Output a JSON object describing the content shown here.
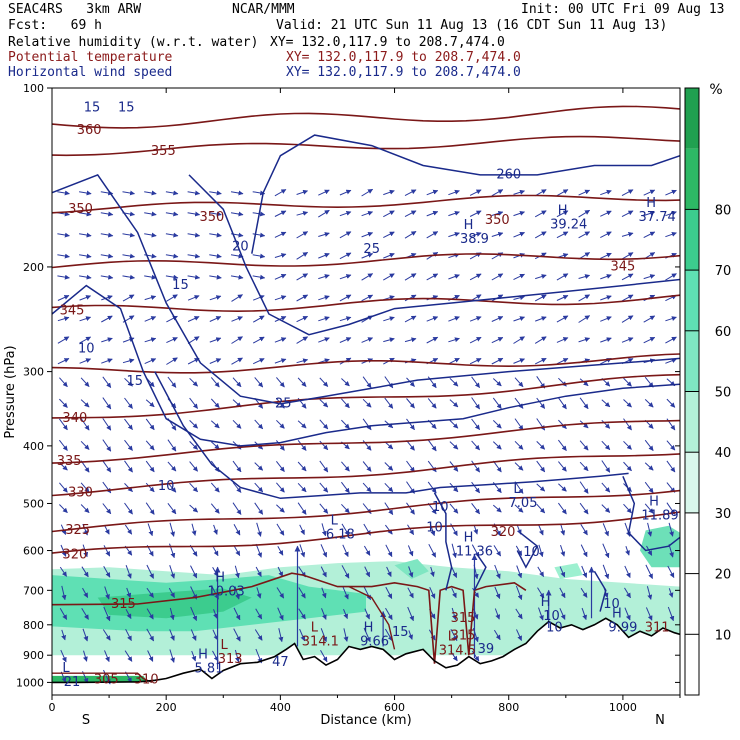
{
  "header": {
    "model": "SEAC4RS   3km ARW",
    "center": "NCAR/MMM",
    "init": "Init: 00 UTC Fri 09 Aug 13",
    "fcst": "Fcst:   69 h",
    "valid": "Valid: 21 UTC Sun 11 Aug 13 (16 CDT Sun 11 Aug 13)"
  },
  "fields": [
    {
      "name": "Relative humidity (w.r.t. water)",
      "xy": "XY= 132.0,117.9 to 208.7,474.0",
      "color": "#000000"
    },
    {
      "name": "Potential temperature",
      "xy": "XY= 132.0,117.9 to 208.7,474.0",
      "color": "#8b1a1a"
    },
    {
      "name": "Horizontal wind speed",
      "xy": "XY= 132.0,117.9 to 208.7,474.0",
      "color": "#1a2a8b"
    }
  ],
  "chart_data": {
    "type": "cross-section",
    "ylabel": "Pressure (hPa)",
    "xlabel": "Distance (km)",
    "x_ticks": [
      "0",
      "200",
      "400",
      "600",
      "800",
      "1000"
    ],
    "y_ticks": [
      "100",
      "200",
      "300",
      "400",
      "500",
      "600",
      "700",
      "800",
      "900",
      "1000"
    ],
    "xlim": [
      0,
      1100
    ],
    "ylim": [
      1050,
      100
    ],
    "y_scale": "log",
    "end_labels": {
      "left": "S",
      "right": "N"
    },
    "colorbar": {
      "unit": "%",
      "ticks": [
        "10",
        "20",
        "30",
        "40",
        "50",
        "60",
        "70",
        "80"
      ],
      "range": [
        0,
        100
      ]
    },
    "theta_labels": [
      {
        "text": "360",
        "x": 65,
        "p": 118
      },
      {
        "text": "355",
        "x": 195,
        "p": 128
      },
      {
        "text": "350",
        "x": 50,
        "p": 160
      },
      {
        "text": "350",
        "x": 280,
        "p": 165
      },
      {
        "text": "350",
        "x": 780,
        "p": 167
      },
      {
        "text": "345",
        "x": 35,
        "p": 237
      },
      {
        "text": "345",
        "x": 1000,
        "p": 200
      },
      {
        "text": "340",
        "x": 40,
        "p": 360
      },
      {
        "text": "335",
        "x": 30,
        "p": 425
      },
      {
        "text": "330",
        "x": 50,
        "p": 480
      },
      {
        "text": "325",
        "x": 45,
        "p": 555
      },
      {
        "text": "320",
        "x": 40,
        "p": 610
      },
      {
        "text": "320",
        "x": 790,
        "p": 560
      },
      {
        "text": "315",
        "x": 125,
        "p": 740
      },
      {
        "text": "315",
        "x": 720,
        "p": 780
      },
      {
        "text": "315",
        "x": 720,
        "p": 835
      },
      {
        "text": "305",
        "x": 95,
        "p": 990
      },
      {
        "text": "310",
        "x": 165,
        "p": 990
      },
      {
        "text": "311",
        "x": 1060,
        "p": 810
      }
    ],
    "wind_labels": [
      {
        "text": "15",
        "x": 70,
        "p": 108
      },
      {
        "text": "15",
        "x": 130,
        "p": 108
      },
      {
        "text": "20",
        "x": 330,
        "p": 185
      },
      {
        "text": "15",
        "x": 225,
        "p": 215
      },
      {
        "text": "10",
        "x": 60,
        "p": 275
      },
      {
        "text": "15",
        "x": 145,
        "p": 312
      },
      {
        "text": "25",
        "x": 405,
        "p": 340
      },
      {
        "text": "25",
        "x": 560,
        "p": 187
      },
      {
        "text": "10",
        "x": 200,
        "p": 468
      },
      {
        "text": "10",
        "x": 680,
        "p": 508
      },
      {
        "text": "10",
        "x": 670,
        "p": 550
      },
      {
        "text": "10",
        "x": 840,
        "p": 605
      },
      {
        "text": "10",
        "x": 980,
        "p": 740
      },
      {
        "text": "10",
        "x": 880,
        "p": 810
      },
      {
        "text": "15",
        "x": 610,
        "p": 825
      }
    ],
    "extrema": [
      {
        "kind": "H",
        "value": "10.03",
        "x": 305,
        "p": 705
      },
      {
        "kind": "H",
        "value": "5.81",
        "x": 275,
        "p": 950
      },
      {
        "kind": "L",
        "value": "313",
        "x": 312,
        "p": 915
      },
      {
        "kind": "L",
        "value": "314.1",
        "x": 470,
        "p": 855
      },
      {
        "kind": "L",
        "value": "6.18",
        "x": 505,
        "p": 565
      },
      {
        "kind": "L",
        "value": "7.05",
        "x": 825,
        "p": 500
      },
      {
        "kind": "H",
        "value": "11.36",
        "x": 740,
        "p": 603
      },
      {
        "kind": "L",
        "value": "314.5",
        "x": 710,
        "p": 885
      },
      {
        "kind": "H",
        "value": "9.66",
        "x": 565,
        "p": 855
      },
      {
        "kind": "H",
        "value": "10",
        "x": 875,
        "p": 775
      },
      {
        "kind": "H",
        "value": "9.99",
        "x": 1000,
        "p": 810
      },
      {
        "kind": "H",
        "value": "11.89",
        "x": 1065,
        "p": 525
      },
      {
        "kind": "H",
        "value": "38.9",
        "x": 740,
        "p": 180
      },
      {
        "kind": "H",
        "value": "39.24",
        "x": 905,
        "p": 170
      },
      {
        "kind": "H",
        "value": "37.74",
        "x": 1060,
        "p": 165
      },
      {
        "kind": "L",
        "value": "21",
        "x": 35,
        "p": 1000
      }
    ],
    "other_labels": [
      {
        "text": "260",
        "x": 800,
        "p": 140
      },
      {
        "text": "47",
        "x": 400,
        "p": 925
      },
      {
        "text": "39",
        "x": 760,
        "p": 880
      }
    ]
  }
}
